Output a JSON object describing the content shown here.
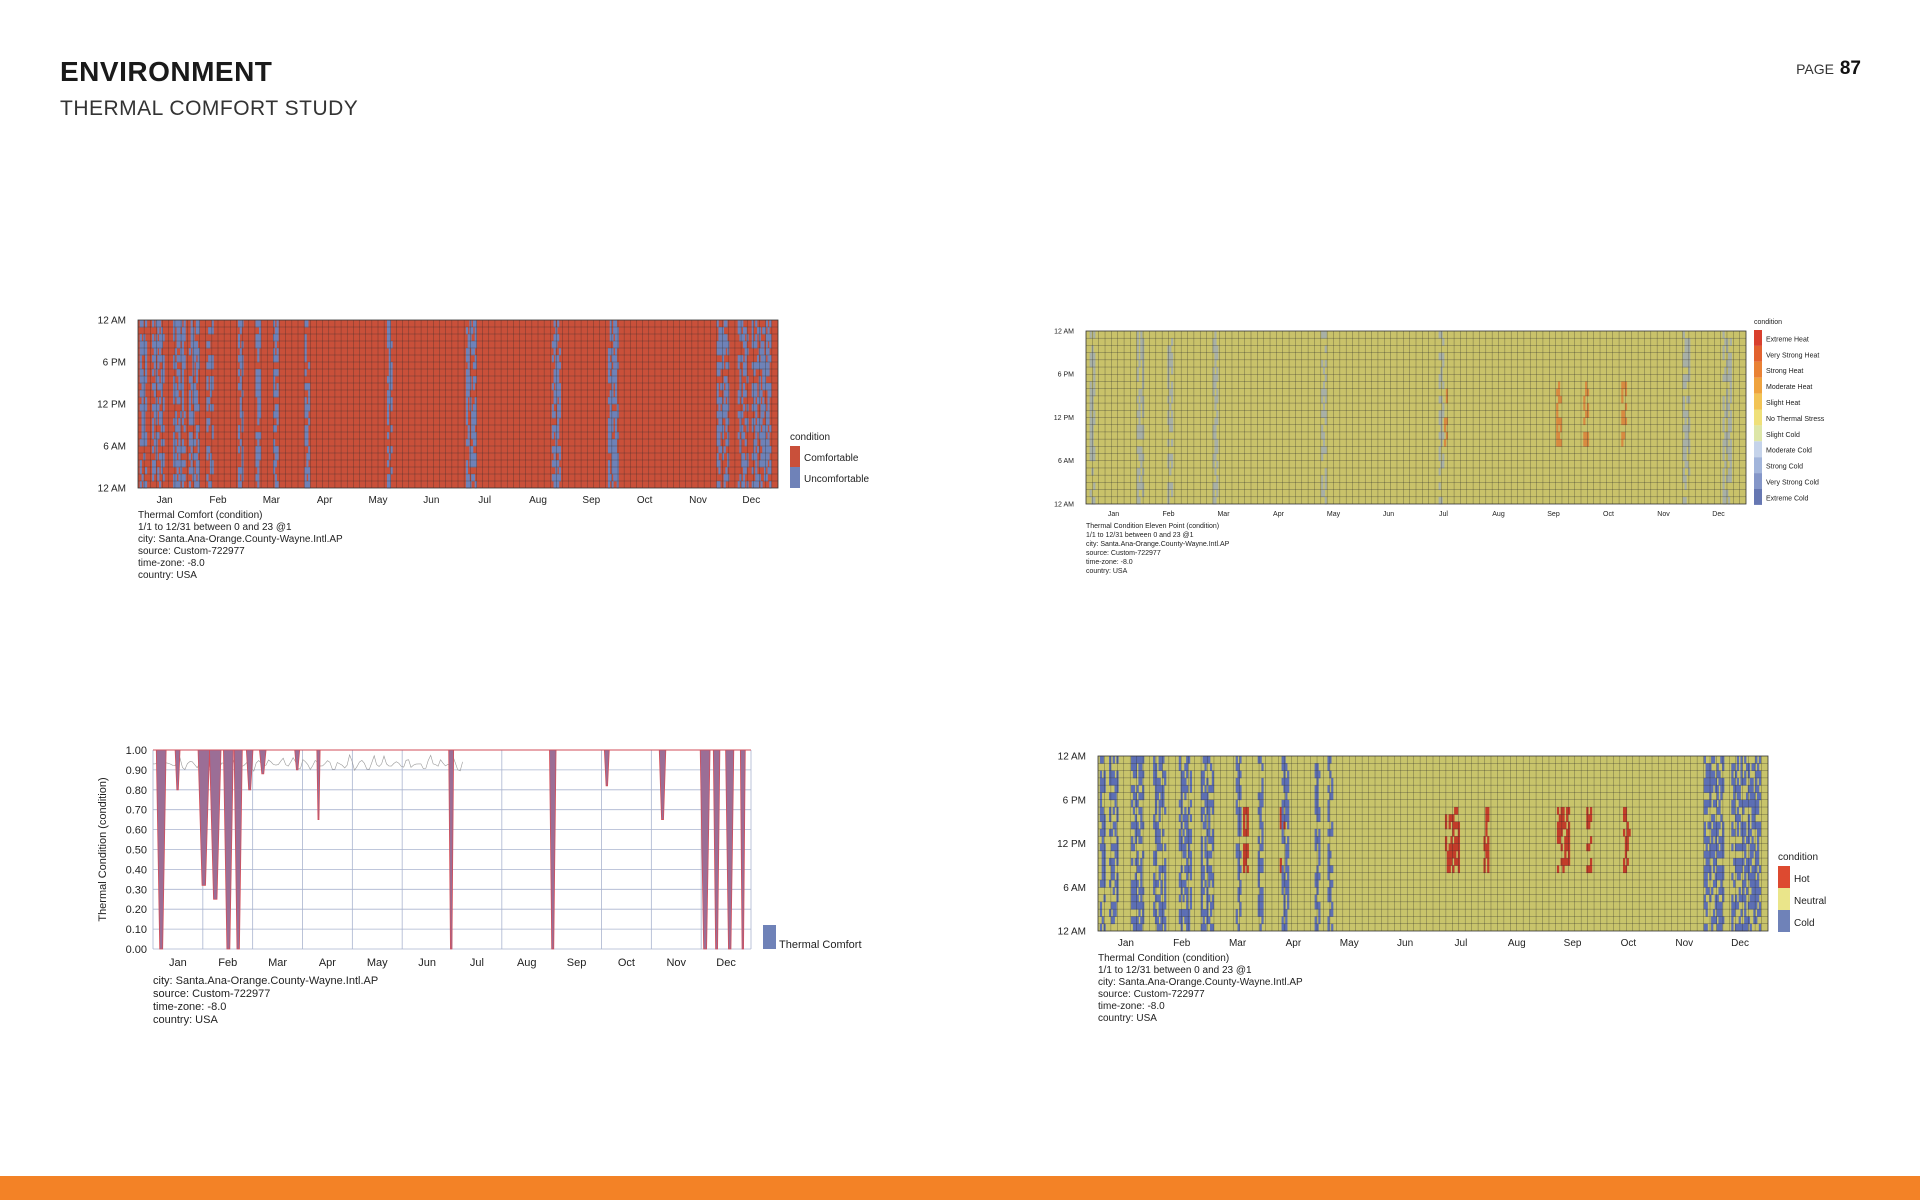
{
  "page": {
    "title": "ENVIRONMENT",
    "subtitle": "THERMAL COMFORT STUDY",
    "page_label": "PAGE",
    "page_number": "87",
    "footer_color": "#f38226"
  },
  "chart_data": [
    {
      "type": "heatmap",
      "variable": "Thermal Comfort (condition)",
      "x_ticks": [
        "Jan",
        "Feb",
        "Mar",
        "Apr",
        "May",
        "Jun",
        "Jul",
        "Aug",
        "Sep",
        "Oct",
        "Nov",
        "Dec"
      ],
      "y_ticks": [
        "12 AM",
        "6 PM",
        "12 PM",
        "6 AM",
        "12 AM"
      ],
      "legend_title": "condition",
      "legend": [
        {
          "label": "Comfortable",
          "color": "#c9503a"
        },
        {
          "label": "Uncomfortable",
          "color": "#6f82b8"
        }
      ],
      "base_color": "#c9503a",
      "accent_color": "#6f82b8",
      "accent_days": [
        [
          1,
          4
        ],
        [
          8,
          14
        ],
        [
          20,
          26
        ],
        [
          29,
          34
        ],
        [
          39,
          42
        ],
        [
          57,
          59
        ],
        [
          67,
          69
        ],
        [
          77,
          79
        ],
        [
          95,
          97
        ],
        [
          142,
          144
        ],
        [
          187,
          192
        ],
        [
          236,
          240
        ],
        [
          268,
          273
        ],
        [
          330,
          336
        ],
        [
          342,
          347
        ],
        [
          350,
          360
        ]
      ],
      "info": [
        "Thermal Comfort (condition)",
        "1/1 to 12/31 between 0 and 23 @1",
        "city: Santa.Ana-Orange.County-Wayne.Intl.AP",
        "source: Custom-722977",
        "time-zone: -8.0",
        "country: USA"
      ]
    },
    {
      "type": "heatmap",
      "variable": "Thermal Condition Eleven Point (condition)",
      "x_ticks": [
        "Jan",
        "Feb",
        "Mar",
        "Apr",
        "May",
        "Jun",
        "Jul",
        "Aug",
        "Sep",
        "Oct",
        "Nov",
        "Dec"
      ],
      "y_ticks": [
        "12 AM",
        "6 PM",
        "12 PM",
        "6 AM",
        "12 AM"
      ],
      "legend_title": "condition",
      "legend": [
        {
          "label": "Extreme Heat",
          "color": "#d9402e"
        },
        {
          "label": "Very Strong Heat",
          "color": "#e2622f"
        },
        {
          "label": "Strong Heat",
          "color": "#e98235"
        },
        {
          "label": "Moderate Heat",
          "color": "#efa33f"
        },
        {
          "label": "Slight Heat",
          "color": "#f2c456"
        },
        {
          "label": "No Thermal Stress",
          "color": "#efe07a"
        },
        {
          "label": "Slight Cold",
          "color": "#dde6a8"
        },
        {
          "label": "Moderate Cold",
          "color": "#c5d3ea"
        },
        {
          "label": "Strong Cold",
          "color": "#a2b5db"
        },
        {
          "label": "Very Strong Cold",
          "color": "#8496c8"
        },
        {
          "label": "Extreme Cold",
          "color": "#6677b2"
        }
      ],
      "base_color": "#c9c26a",
      "accent_color": "#a8b0a6",
      "hot_color": "#d98a40",
      "accent_days": [
        [
          2,
          4
        ],
        [
          28,
          31
        ],
        [
          45,
          47
        ],
        [
          70,
          72
        ],
        [
          130,
          132
        ],
        [
          195,
          197
        ],
        [
          330,
          333
        ],
        [
          352,
          356
        ]
      ],
      "hot_days": [
        [
          197,
          199
        ],
        [
          260,
          262
        ],
        [
          275,
          277
        ],
        [
          296,
          298
        ]
      ],
      "info": [
        "Thermal Condition Eleven Point (condition)",
        "1/1 to 12/31 between 0 and 23 @1",
        "city: Santa.Ana-Orange.County-Wayne.Intl.AP",
        "source: Custom-722977",
        "time-zone: -8.0",
        "country: USA"
      ]
    },
    {
      "type": "area",
      "ylabel": "Thermal Condition (condition)",
      "ylim": [
        0,
        1
      ],
      "y_ticks": [
        "0.00",
        "0.10",
        "0.20",
        "0.30",
        "0.40",
        "0.50",
        "0.60",
        "0.70",
        "0.80",
        "0.90",
        "1.00"
      ],
      "x_ticks": [
        "Jan",
        "Feb",
        "Mar",
        "Apr",
        "May",
        "Jun",
        "Jul",
        "Aug",
        "Sep",
        "Oct",
        "Nov",
        "Dec"
      ],
      "legend": [
        {
          "label": "Thermal Comfort",
          "color": "#6f82b8"
        }
      ],
      "series_color": "#9b6e96",
      "edge_color": "#d24e5a",
      "dips": [
        {
          "day": 5,
          "width": 6,
          "value": 0.0
        },
        {
          "day": 15,
          "width": 3,
          "value": 0.8
        },
        {
          "day": 31,
          "width": 7,
          "value": 0.32
        },
        {
          "day": 38,
          "width": 7,
          "value": 0.25
        },
        {
          "day": 46,
          "width": 6,
          "value": 0.0
        },
        {
          "day": 52,
          "width": 5,
          "value": 0.0
        },
        {
          "day": 59,
          "width": 4,
          "value": 0.8
        },
        {
          "day": 67,
          "width": 4,
          "value": 0.88
        },
        {
          "day": 88,
          "width": 3,
          "value": 0.9
        },
        {
          "day": 101,
          "width": 2,
          "value": 0.65
        },
        {
          "day": 182,
          "width": 3,
          "value": 0.0
        },
        {
          "day": 244,
          "width": 4,
          "value": 0.0
        },
        {
          "day": 277,
          "width": 3,
          "value": 0.82
        },
        {
          "day": 311,
          "width": 4,
          "value": 0.65
        },
        {
          "day": 337,
          "width": 6,
          "value": 0.0
        },
        {
          "day": 344,
          "width": 4,
          "value": 0.0
        },
        {
          "day": 352,
          "width": 5,
          "value": 0.0
        },
        {
          "day": 360,
          "width": 3,
          "value": 0.0
        }
      ],
      "info": [
        "city: Santa.Ana-Orange.County-Wayne.Intl.AP",
        "source: Custom-722977",
        "time-zone: -8.0",
        "country: USA"
      ]
    },
    {
      "type": "heatmap",
      "variable": "Thermal Condition (condition)",
      "x_ticks": [
        "Jan",
        "Feb",
        "Mar",
        "Apr",
        "May",
        "Jun",
        "Jul",
        "Aug",
        "Sep",
        "Oct",
        "Nov",
        "Dec"
      ],
      "y_ticks": [
        "12 AM",
        "6 PM",
        "12 PM",
        "6 AM",
        "12 AM"
      ],
      "legend_title": "condition",
      "legend": [
        {
          "label": "Hot",
          "color": "#dd4a30"
        },
        {
          "label": "Neutral",
          "color": "#eae58a"
        },
        {
          "label": "Cold",
          "color": "#6f82b8"
        }
      ],
      "base_color": "#c8c46b",
      "accent_color": "#5d6fb4",
      "hot_color": "#c33d2a",
      "accent_days": [
        [
          1,
          3
        ],
        [
          6,
          10
        ],
        [
          18,
          24
        ],
        [
          30,
          36
        ],
        [
          44,
          50
        ],
        [
          56,
          62
        ],
        [
          75,
          77
        ],
        [
          87,
          89
        ],
        [
          100,
          103
        ],
        [
          118,
          120
        ],
        [
          125,
          127
        ],
        [
          330,
          340
        ],
        [
          345,
          360
        ]
      ],
      "hot_days": [
        [
          79,
          81
        ],
        [
          99,
          101
        ],
        [
          189,
          196
        ],
        [
          210,
          212
        ],
        [
          250,
          256
        ],
        [
          266,
          268
        ],
        [
          286,
          289
        ]
      ],
      "info": [
        "Thermal Condition (condition)",
        "1/1 to 12/31 between 0 and 23 @1",
        "city: Santa.Ana-Orange.County-Wayne.Intl.AP",
        "source: Custom-722977",
        "time-zone: -8.0",
        "country: USA"
      ]
    }
  ]
}
